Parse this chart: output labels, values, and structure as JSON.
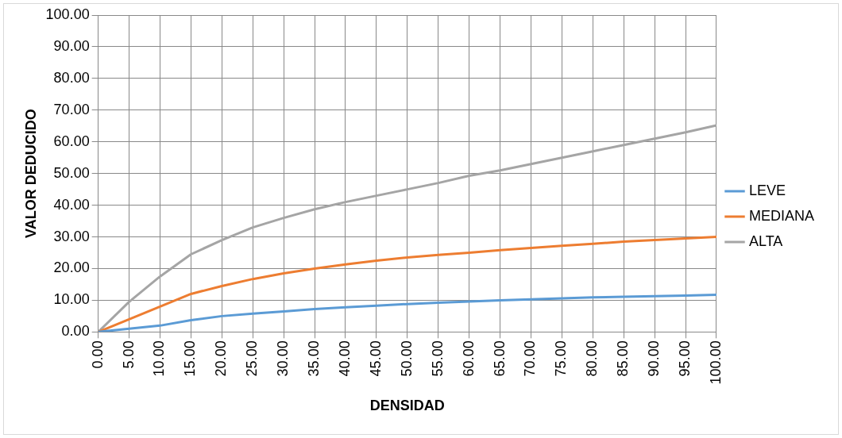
{
  "chart_data": {
    "type": "line",
    "xlabel": "DENSIDAD",
    "ylabel": "VALOR DEDUCIDO",
    "categories": [
      "0.00",
      "5.00",
      "10.00",
      "15.00",
      "20.00",
      "25.00",
      "30.00",
      "35.00",
      "40.00",
      "45.00",
      "50.00",
      "55.00",
      "60.00",
      "65.00",
      "70.00",
      "75.00",
      "80.00",
      "85.00",
      "90.00",
      "95.00",
      "100.00"
    ],
    "series": [
      {
        "name": "LEVE",
        "color": "#5b9bd5",
        "values": [
          0,
          1,
          2,
          3.7,
          5,
          5.8,
          6.5,
          7.2,
          7.8,
          8.3,
          8.8,
          9.2,
          9.6,
          10,
          10.3,
          10.6,
          10.9,
          11.1,
          11.3,
          11.5,
          11.7
        ]
      },
      {
        "name": "MEDIANA",
        "color": "#ed7d31",
        "values": [
          0,
          4,
          8,
          12,
          14.5,
          16.7,
          18.5,
          20,
          21.3,
          22.5,
          23.5,
          24.3,
          25,
          25.8,
          26.5,
          27.2,
          27.8,
          28.5,
          29,
          29.5,
          30
        ]
      },
      {
        "name": "ALTA",
        "color": "#a5a5a5",
        "values": [
          0,
          9.5,
          17.5,
          24.5,
          29,
          33,
          36,
          38.7,
          41,
          43,
          45,
          47,
          49.3,
          51,
          53,
          55,
          57,
          59,
          61,
          63,
          65.2
        ]
      }
    ],
    "ylim": [
      0,
      100
    ],
    "yticks": [
      {
        "value": 0,
        "label": "0.00"
      },
      {
        "value": 10,
        "label": "10.00"
      },
      {
        "value": 20,
        "label": "20.00"
      },
      {
        "value": 30,
        "label": "30.00"
      },
      {
        "value": 40,
        "label": "40.00"
      },
      {
        "value": 50,
        "label": "50.00"
      },
      {
        "value": 60,
        "label": "60.00"
      },
      {
        "value": 70,
        "label": "70.00"
      },
      {
        "value": 80,
        "label": "80.00"
      },
      {
        "value": 90,
        "label": "90.00"
      },
      {
        "value": 100,
        "label": "100.00"
      }
    ],
    "grid": true,
    "legend": "right",
    "marker": "none",
    "line_style": "solid"
  }
}
